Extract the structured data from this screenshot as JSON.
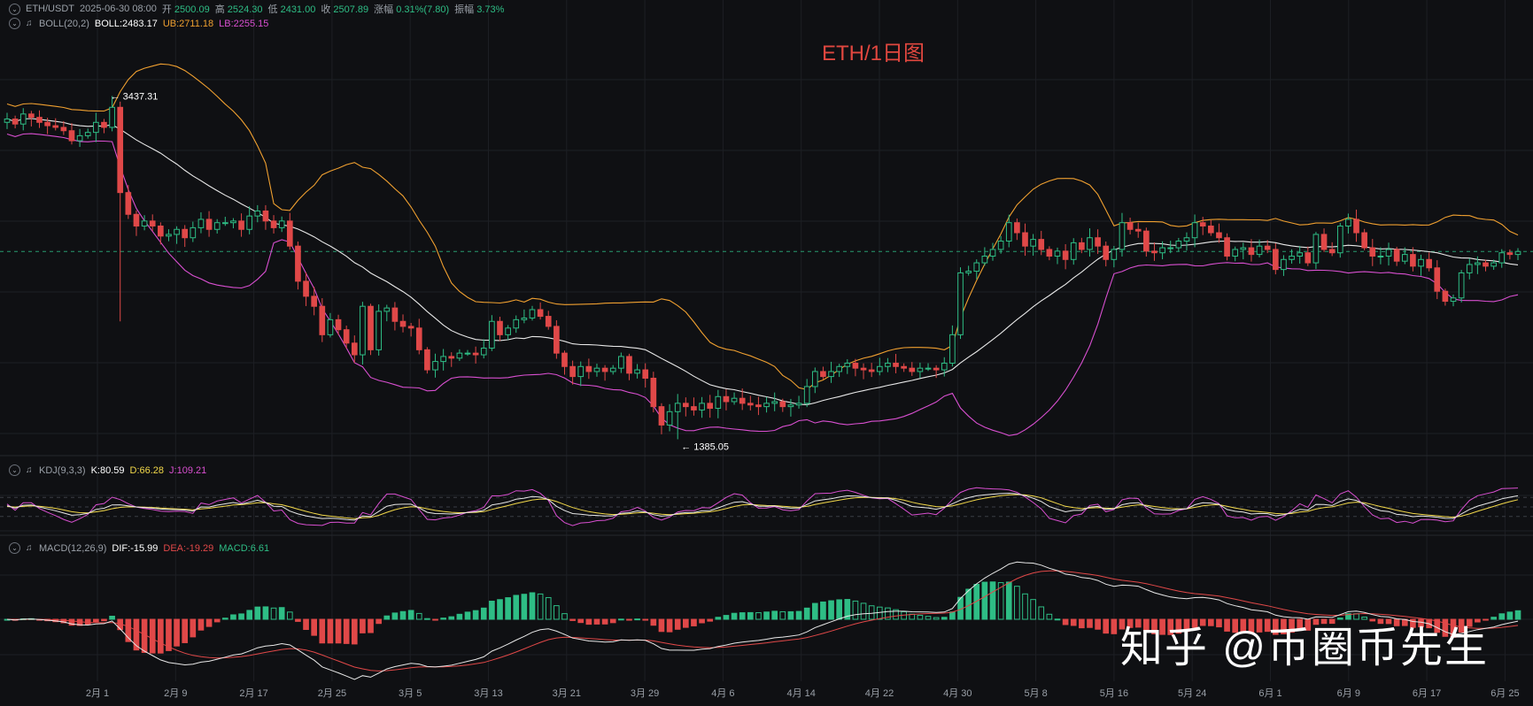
{
  "legend": {
    "ohlc": {
      "symbol": "ETH/USDT",
      "datetime": "2025-06-30 08:00",
      "open_label": "开",
      "open": "2500.09",
      "high_label": "高",
      "high": "2524.30",
      "low_label": "低",
      "low": "2431.00",
      "close_label": "收",
      "close": "2507.89",
      "change_label": "涨幅",
      "change": "0.31%(7.80)",
      "amplitude_label": "振幅",
      "amplitude": "3.73%"
    },
    "boll": {
      "name": "BOLL(20,2)",
      "boll": "BOLL:2483.17",
      "ub": "UB:2711.18",
      "lb": "LB:2255.15"
    },
    "kdj": {
      "name": "KDJ(9,3,3)",
      "k": "K:80.59",
      "d": "D:66.28",
      "j": "J:109.21"
    },
    "macd": {
      "name": "MACD(12,26,9)",
      "dif": "DIF:-15.99",
      "dea": "DEA:-19.29",
      "macd": "MACD:6.61"
    }
  },
  "title": "ETH/1日图",
  "watermark": "知乎 @币圈币先生",
  "colors": {
    "up": "#2ebd85",
    "down": "#e04848",
    "boll_mid": "#e8e8e8",
    "boll_upper": "#f0a030",
    "boll_lower": "#d84fd0"
  },
  "chart_data": {
    "type": "candlestick",
    "annotations": {
      "high_label": "← 3437.31",
      "low_label": "← 1385.05",
      "high": 3437.31,
      "low": 1385.05,
      "last_price": 2507.89
    },
    "price_range": [
      1340,
      3800
    ],
    "x_ticks": [
      "2月 1",
      "2月 9",
      "2月 17",
      "2月 25",
      "3月 5",
      "3月 13",
      "3月 21",
      "3月 29",
      "4月 6",
      "4月 14",
      "4月 22",
      "4月 30",
      "5月 8",
      "5月 16",
      "5月 24",
      "6月 1",
      "6月 9",
      "6月 17",
      "6月 25"
    ],
    "closes": [
      3300,
      3270,
      3330,
      3310,
      3280,
      3260,
      3250,
      3230,
      3170,
      3200,
      3220,
      3280,
      3250,
      3370,
      2860,
      2730,
      2660,
      2690,
      2660,
      2600,
      2610,
      2640,
      2590,
      2650,
      2700,
      2640,
      2680,
      2680,
      2690,
      2640,
      2720,
      2750,
      2690,
      2650,
      2690,
      2540,
      2330,
      2240,
      2180,
      2010,
      2100,
      2040,
      1960,
      1890,
      2180,
      1920,
      2150,
      2170,
      2090,
      2060,
      2050,
      1920,
      1800,
      1850,
      1880,
      1870,
      1900,
      1900,
      1890,
      1930,
      2090,
      2010,
      2050,
      2100,
      2110,
      2160,
      2120,
      2060,
      1900,
      1820,
      1760,
      1820,
      1790,
      1810,
      1790,
      1810,
      1880,
      1780,
      1800,
      1750,
      1580,
      1470,
      1550,
      1600,
      1580,
      1560,
      1600,
      1570,
      1640,
      1610,
      1630,
      1600,
      1590,
      1580,
      1600,
      1610,
      1580,
      1590,
      1600,
      1700,
      1790,
      1760,
      1790,
      1820,
      1840,
      1810,
      1800,
      1790,
      1820,
      1840,
      1820,
      1810,
      1790,
      1810,
      1810,
      1800,
      1840,
      2010,
      2380,
      2390,
      2440,
      2480,
      2520,
      2570,
      2680,
      2620,
      2540,
      2580,
      2520,
      2480,
      2510,
      2460,
      2560,
      2520,
      2590,
      2540,
      2460,
      2520,
      2680,
      2640,
      2630,
      2510,
      2500,
      2530,
      2530,
      2570,
      2590,
      2680,
      2660,
      2620,
      2590,
      2480,
      2520,
      2530,
      2490,
      2540,
      2520,
      2400,
      2460,
      2480,
      2500,
      2440,
      2610,
      2520,
      2500,
      2660,
      2700,
      2620,
      2530,
      2480,
      2480,
      2520,
      2450,
      2490,
      2420,
      2460,
      2410,
      2270,
      2210,
      2230,
      2380,
      2430,
      2440,
      2420,
      2440,
      2500,
      2490,
      2507.89
    ]
  }
}
